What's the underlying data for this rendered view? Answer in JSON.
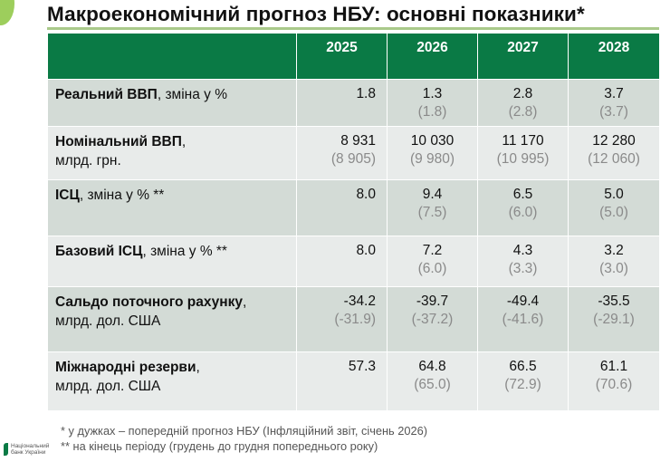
{
  "title": "Макроекономічний прогноз НБУ: основні показники*",
  "table": {
    "header_label": "",
    "years": [
      "2025",
      "2026",
      "2027",
      "2028"
    ],
    "rows": [
      {
        "label_bold": "Реальний ВВП",
        "label_rest": ", зміна у %",
        "label_line2": "",
        "values": [
          "1.8",
          "1.3",
          "2.8",
          "3.7"
        ],
        "previous": [
          "",
          "(1.8)",
          "(2.8)",
          "(3.7)"
        ]
      },
      {
        "label_bold": "Номінальний ВВП",
        "label_rest": ",",
        "label_line2": "млрд. грн.",
        "values": [
          "8 931",
          "10 030",
          "11 170",
          "12 280"
        ],
        "previous": [
          "(8 905)",
          "(9 980)",
          "(10 995)",
          "(12 060)"
        ]
      },
      {
        "label_bold": "ІСЦ",
        "label_rest": ", зміна у % **",
        "label_line2": "",
        "values": [
          "8.0",
          "9.4",
          "6.5",
          "5.0"
        ],
        "previous": [
          "",
          "(7.5)",
          "(6.0)",
          "(5.0)"
        ]
      },
      {
        "label_bold": "Базовий ІСЦ",
        "label_rest": ", зміна у % **",
        "label_line2": "",
        "values": [
          "8.0",
          "7.2",
          "4.3",
          "3.2"
        ],
        "previous": [
          "",
          "(6.0)",
          "(3.3)",
          "(3.0)"
        ]
      },
      {
        "label_bold": "Сальдо поточного рахунку",
        "label_rest": ",",
        "label_line2": "млрд. дол. США",
        "values": [
          "-34.2",
          "-39.7",
          "-49.4",
          "-35.5"
        ],
        "previous": [
          "(-31.9)",
          "(-37.2)",
          "(-41.6)",
          "(-29.1)"
        ]
      },
      {
        "label_bold": "Міжнародні резерви",
        "label_rest": ",",
        "label_line2": "млрд. дол. США",
        "values": [
          "57.3",
          "64.8",
          "66.5",
          "61.1"
        ],
        "previous": [
          "",
          "(65.0)",
          "(72.9)",
          "(70.6)"
        ]
      }
    ]
  },
  "footnotes": [
    "* у дужках – попередній прогноз НБУ (Інфляційний звіт, січень 2026)",
    "** на кінець періоду (грудень до грудня попереднього року)"
  ],
  "logo": {
    "line1": "Національний",
    "line2": "банк України"
  },
  "colors": {
    "header_green": "#0a7a45",
    "row_dark": "#d3dbd6",
    "row_light": "#e8ebea",
    "previous_gray": "#8a8a8a",
    "rule": "#a9c98a"
  }
}
